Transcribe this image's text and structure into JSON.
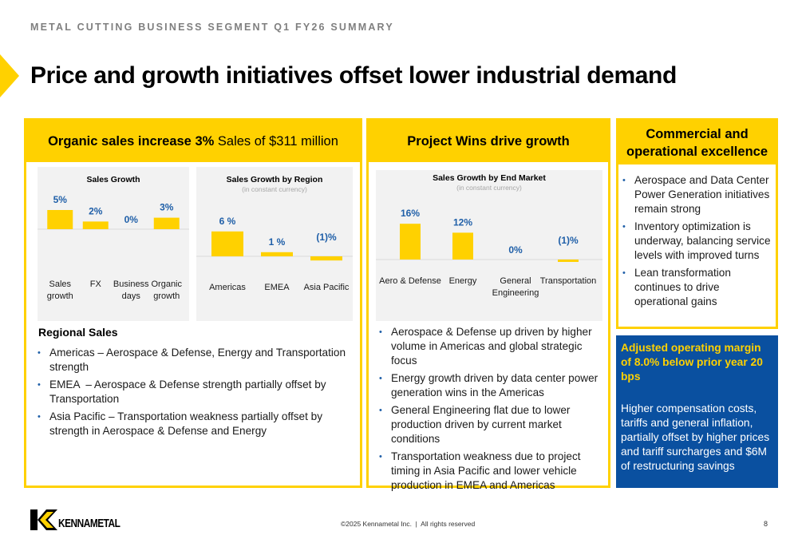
{
  "header": {
    "eyebrow": "METAL CUTTING BUSINESS SEGMENT Q1 FY26 SUMMARY",
    "title": "Price and growth initiatives offset lower industrial demand"
  },
  "colors": {
    "brand_yellow": "#ffd100",
    "brand_blue": "#0a50a0",
    "value_label_blue": "#1f5fa8",
    "chart_bg": "#f2f2f2"
  },
  "panel_organic": {
    "head_bold": "Organic sales increase 3%",
    "head_regular": " Sales of $311 million",
    "regional_title": "Regional Sales",
    "bullets": [
      "Americas – Aerospace & Defense, Energy and Transportation strength",
      "EMEA  – Aerospace & Defense strength partially offset by Transportation",
      "Asia Pacific – Transportation weakness partially offset by strength in Aerospace & Defense and Energy"
    ]
  },
  "panel_project": {
    "head": "Project Wins drive growth",
    "bullets": [
      "Aerospace & Defense up driven by higher volume in Americas and global strategic focus",
      "Energy growth driven by data center power generation wins in the Americas",
      "General Engineering flat due to lower production driven by current market conditions",
      "Transportation weakness due to project timing in Asia Pacific and lower vehicle production in EMEA and Americas"
    ]
  },
  "panel_commercial": {
    "head": "Commercial and operational excellence",
    "bullets": [
      "Aerospace and Data Center Power Generation initiatives remain strong",
      "Inventory optimization is underway, balancing service levels with improved turns",
      "Lean transformation continues to drive operational gains"
    ]
  },
  "margin_box": {
    "headline": "Adjusted operating margin of 8.0% below prior year 20 bps",
    "body": "Higher compensation costs, tariffs and general inflation, partially offset by higher prices and tariff surcharges and $6M of restructuring savings"
  },
  "footer": {
    "logo_text": "KENNAMETAL",
    "copyright": "©2025 Kennametal Inc.  |  All rights reserved",
    "page_number": "8"
  },
  "chart_data": [
    {
      "type": "bar",
      "title": "Sales Growth",
      "subtitle": "",
      "categories": [
        "Sales growth",
        "FX",
        "Business days",
        "Organic growth"
      ],
      "category_lines": [
        [
          "Sales",
          "growth"
        ],
        [
          "FX"
        ],
        [
          "Business",
          "days"
        ],
        [
          "Organic",
          "growth"
        ]
      ],
      "values": [
        5,
        2,
        0,
        3
      ],
      "value_labels": [
        "5%",
        "2%",
        "0%",
        "3%"
      ],
      "xlabel": "",
      "ylabel": "",
      "ylim": [
        -6,
        6
      ],
      "grid": false,
      "legend": "none"
    },
    {
      "type": "bar",
      "title": "Sales Growth by Region",
      "subtitle": "(in constant currency)",
      "categories": [
        "Americas",
        "EMEA",
        "Asia Pacific"
      ],
      "category_lines": [
        [
          "Americas"
        ],
        [
          "EMEA"
        ],
        [
          "Asia Pacific"
        ]
      ],
      "values": [
        6,
        1,
        -1
      ],
      "value_labels": [
        "6 %",
        "1 %",
        "(1)%"
      ],
      "xlabel": "",
      "ylabel": "",
      "ylim": [
        -8,
        8
      ],
      "grid": false,
      "legend": "none"
    },
    {
      "type": "bar",
      "title": "Sales Growth by End Market",
      "subtitle": "(in constant currency)",
      "categories": [
        "Aero & Defense",
        "Energy",
        "General Engineering",
        "Transportation"
      ],
      "category_lines": [
        [
          "Aero & Defense"
        ],
        [
          "Energy"
        ],
        [
          "General",
          "Engineering"
        ],
        [
          "Transportation"
        ]
      ],
      "values": [
        16,
        12,
        0,
        -1
      ],
      "value_labels": [
        "16%",
        "12%",
        "0%",
        "(1)%"
      ],
      "xlabel": "",
      "ylabel": "",
      "ylim": [
        -20,
        20
      ],
      "grid": false,
      "legend": "none"
    }
  ]
}
